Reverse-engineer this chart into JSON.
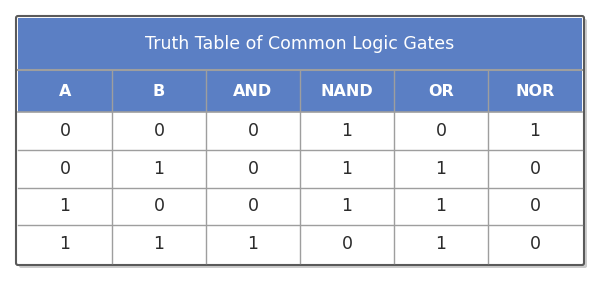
{
  "title": "Truth Table of Common Logic Gates",
  "columns": [
    "A",
    "B",
    "AND",
    "NAND",
    "OR",
    "NOR"
  ],
  "rows": [
    [
      "0",
      "0",
      "0",
      "1",
      "0",
      "1"
    ],
    [
      "0",
      "1",
      "0",
      "1",
      "1",
      "0"
    ],
    [
      "1",
      "0",
      "0",
      "1",
      "1",
      "0"
    ],
    [
      "1",
      "1",
      "1",
      "0",
      "1",
      "0"
    ]
  ],
  "header_bg": "#5B7FC4",
  "title_bg": "#5B7FC4",
  "row_bg": "#FFFFFF",
  "header_text_color": "#FFFFFF",
  "cell_text_color": "#2B2B2B",
  "border_color": "#9E9E9E",
  "outer_border_color": "#5A5A5A",
  "outer_bg": "#FFFFFF",
  "title_fontsize": 12.5,
  "header_fontsize": 11.5,
  "cell_fontsize": 12.5,
  "fig_bg": "#FFFFFF",
  "shadow_color": "#CCCCCC"
}
